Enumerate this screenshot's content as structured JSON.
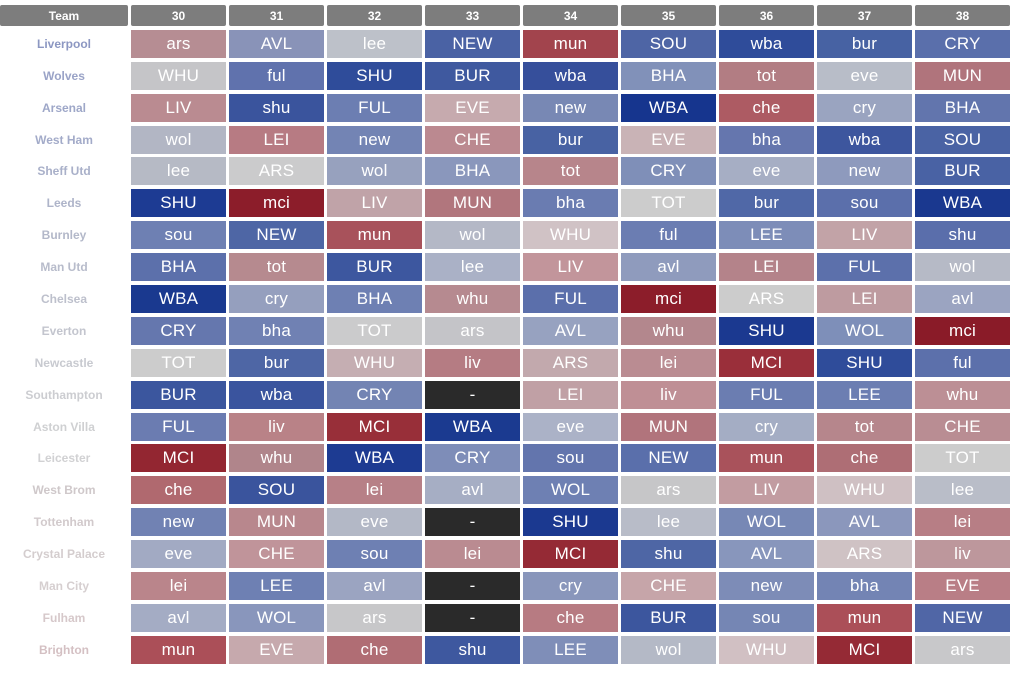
{
  "header": {
    "team_label": "Team",
    "gameweeks": [
      "30",
      "31",
      "32",
      "33",
      "34",
      "35",
      "36",
      "37",
      "38"
    ]
  },
  "colors": {
    "header_bg": "#7d7d7d",
    "team_text": [
      "#8c97c2",
      "#9aa3c7",
      "#9ea7c8",
      "#a3abc9",
      "#a9b0c9",
      "#aeb4c9",
      "#b3b8c9",
      "#b8bccb",
      "#bdc0cc",
      "#c3c5ce",
      "#c8cad0",
      "#cccdd1",
      "#cfd0d2",
      "#d1d1d3",
      "#cfc8ca",
      "#d2cacc",
      "#d4cdce",
      "#d6cfd0",
      "#d6c8ca",
      "#d4c0c3"
    ]
  },
  "teams": [
    {
      "name": "Liverpool",
      "fixtures": [
        "ars",
        "AVL",
        "lee",
        "NEW",
        "mun",
        "SOU",
        "wba",
        "bur",
        "CRY"
      ],
      "colors": [
        "#b68d93",
        "#8993b8",
        "#bdc1c9",
        "#4a62a4",
        "#a2444d",
        "#4e65a5",
        "#2f4c9a",
        "#4762a3",
        "#5a6fab"
      ]
    },
    {
      "name": "Wolves",
      "fixtures": [
        "WHU",
        "ful",
        "SHU",
        "BUR",
        "wba",
        "BHA",
        "tot",
        "eve",
        "MUN"
      ],
      "colors": [
        "#c5c5c8",
        "#6072ad",
        "#2f4c9a",
        "#3f599f",
        "#364f9b",
        "#8191b9",
        "#b27d83",
        "#b8bdc8",
        "#b0747c"
      ]
    },
    {
      "name": "Arsenal",
      "fixtures": [
        "LIV",
        "shu",
        "FUL",
        "EVE",
        "new",
        "WBA",
        "che",
        "cry",
        "BHA"
      ],
      "colors": [
        "#ba8b91",
        "#3a549d",
        "#6c7eb2",
        "#c6aaae",
        "#7888b4",
        "#16358e",
        "#ad5b63",
        "#9aa4c0",
        "#6275ad"
      ]
    },
    {
      "name": "West Ham",
      "fixtures": [
        "wol",
        "LEI",
        "new",
        "CHE",
        "bur",
        "EVE",
        "bha",
        "wba",
        "SOU"
      ],
      "colors": [
        "#b2b6c4",
        "#b77b83",
        "#7384b4",
        "#bb8990",
        "#4862a3",
        "#c9b3b6",
        "#6576ae",
        "#3d569e",
        "#4a63a4"
      ]
    },
    {
      "name": "Sheff Utd",
      "fixtures": [
        "lee",
        "ARS",
        "wol",
        "BHA",
        "tot",
        "CRY",
        "eve",
        "new",
        "BUR"
      ],
      "colors": [
        "#b6bac5",
        "#cbcbcc",
        "#97a1be",
        "#8a97bc",
        "#b7858b",
        "#7f8fb8",
        "#a6aec4",
        "#8e9abd",
        "#4962a4"
      ]
    },
    {
      "name": "Leeds",
      "fixtures": [
        "SHU",
        "mci",
        "LIV",
        "MUN",
        "bha",
        "TOT",
        "bur",
        "sou",
        "WBA"
      ],
      "colors": [
        "#1d3b93",
        "#8c1d2a",
        "#c0a3a8",
        "#b1767d",
        "#6a7cb1",
        "#cccccc",
        "#5068a7",
        "#5b6fab",
        "#1a388f"
      ]
    },
    {
      "name": "Burnley",
      "fixtures": [
        "sou",
        "NEW",
        "mun",
        "wol",
        "WHU",
        "ful",
        "LEE",
        "LIV",
        "shu"
      ],
      "colors": [
        "#6e80b3",
        "#4e66a5",
        "#a8525b",
        "#b4b8c6",
        "#d0c2c5",
        "#6b7db2",
        "#7d8db8",
        "#c2a3a7",
        "#5a6eab"
      ]
    },
    {
      "name": "Man Utd",
      "fixtures": [
        "BHA",
        "tot",
        "BUR",
        "lee",
        "LIV",
        "avl",
        "LEI",
        "FUL",
        "wol"
      ],
      "colors": [
        "#5c70ab",
        "#b68a8f",
        "#3d579f",
        "#aab1c6",
        "#c2959b",
        "#8f9bbd",
        "#b4838a",
        "#5c70ab",
        "#b6bac6"
      ]
    },
    {
      "name": "Chelsea",
      "fixtures": [
        "WBA",
        "cry",
        "BHA",
        "whu",
        "FUL",
        "mci",
        "ARS",
        "LEI",
        "avl"
      ],
      "colors": [
        "#1a398f",
        "#959fbe",
        "#6e80b3",
        "#b68a90",
        "#5b6fab",
        "#8c1d2a",
        "#cccccc",
        "#be9ba0",
        "#9ba4c1"
      ]
    },
    {
      "name": "Everton",
      "fixtures": [
        "CRY",
        "bha",
        "TOT",
        "ars",
        "AVL",
        "whu",
        "SHU",
        "WOL",
        "mci"
      ],
      "colors": [
        "#6577ae",
        "#7081b3",
        "#cbcbcc",
        "#c4c4c8",
        "#97a2c0",
        "#b3878d",
        "#1b3990",
        "#7e8fb9",
        "#8a1b28"
      ]
    },
    {
      "name": "Newcastle",
      "fixtures": [
        "TOT",
        "bur",
        "WHU",
        "liv",
        "ARS",
        "lei",
        "MCI",
        "SHU",
        "ful"
      ],
      "colors": [
        "#cccccc",
        "#4e66a5",
        "#c5aeb2",
        "#b57c83",
        "#c2a9ad",
        "#ba8c92",
        "#9a2f3a",
        "#2f4c9a",
        "#5c70ab"
      ]
    },
    {
      "name": "Southampton",
      "fixtures": [
        "BUR",
        "wba",
        "CRY",
        "-",
        "LEI",
        "liv",
        "FUL",
        "LEE",
        "whu"
      ],
      "colors": [
        "#3b569e",
        "#3a549e",
        "#7384b3",
        "#2a2a2a",
        "#c0a0a5",
        "#bf8f95",
        "#6b7db1",
        "#6c7eb2",
        "#bc8f95"
      ]
    },
    {
      "name": "Aston Villa",
      "fixtures": [
        "FUL",
        "liv",
        "MCI",
        "WBA",
        "eve",
        "MUN",
        "cry",
        "tot",
        "CHE"
      ],
      "colors": [
        "#6b7cb1",
        "#b98287",
        "#982f39",
        "#1b3a90",
        "#abb2c7",
        "#b1747c",
        "#a4adc4",
        "#b6868c",
        "#b98d93"
      ]
    },
    {
      "name": "Leicester",
      "fixtures": [
        "MCI",
        "whu",
        "WBA",
        "CRY",
        "sou",
        "NEW",
        "mun",
        "che",
        "TOT"
      ],
      "colors": [
        "#932631",
        "#b0858b",
        "#1d3b92",
        "#7e8db8",
        "#6375ad",
        "#5a6fab",
        "#a9525b",
        "#ae6e75",
        "#cccccc"
      ]
    },
    {
      "name": "West Brom",
      "fixtures": [
        "che",
        "SOU",
        "lei",
        "avl",
        "WOL",
        "ars",
        "LIV",
        "WHU",
        "lee"
      ],
      "colors": [
        "#b0696f",
        "#3a549d",
        "#b78087",
        "#a6aec4",
        "#6e80b3",
        "#c6c6c8",
        "#c29ca1",
        "#cfc0c3",
        "#b9bdc8"
      ]
    },
    {
      "name": "Tottenham",
      "fixtures": [
        "new",
        "MUN",
        "eve",
        "-",
        "SHU",
        "lee",
        "WOL",
        "AVL",
        "lei"
      ],
      "colors": [
        "#7182b3",
        "#b8878d",
        "#b3b8c6",
        "#2a2a2a",
        "#1b3990",
        "#b8bcc8",
        "#7788b5",
        "#8b97bc",
        "#b77e85"
      ]
    },
    {
      "name": "Crystal Palace",
      "fixtures": [
        "eve",
        "CHE",
        "sou",
        "lei",
        "MCI",
        "shu",
        "AVL",
        "ARS",
        "liv"
      ],
      "colors": [
        "#a2aac3",
        "#c0949a",
        "#6e80b3",
        "#ba8b91",
        "#952a35",
        "#4e66a5",
        "#8896bc",
        "#cfc2c4",
        "#bd979c"
      ]
    },
    {
      "name": "Man City",
      "fixtures": [
        "lei",
        "LEE",
        "avl",
        "-",
        "cry",
        "CHE",
        "new",
        "bha",
        "EVE"
      ],
      "colors": [
        "#ba858b",
        "#6e80b3",
        "#9ba4c1",
        "#2a2a2a",
        "#8996bb",
        "#c6a5a9",
        "#7d8cb7",
        "#7384b4",
        "#b97e86"
      ]
    },
    {
      "name": "Fulham",
      "fixtures": [
        "avl",
        "WOL",
        "ars",
        "-",
        "che",
        "BUR",
        "sou",
        "mun",
        "NEW"
      ],
      "colors": [
        "#a4acc4",
        "#8996bc",
        "#c7c7c9",
        "#2a2a2a",
        "#b77b82",
        "#3c569e",
        "#7586b4",
        "#ab4f58",
        "#5066a6"
      ]
    },
    {
      "name": "Brighton",
      "fixtures": [
        "mun",
        "EVE",
        "che",
        "shu",
        "LEE",
        "wol",
        "WHU",
        "MCI",
        "ars"
      ],
      "colors": [
        "#ab4f58",
        "#c6a9ad",
        "#b06d74",
        "#3e589f",
        "#7f8eb8",
        "#b4b9c6",
        "#d1c0c3",
        "#952a35",
        "#c8c8ca"
      ]
    }
  ]
}
